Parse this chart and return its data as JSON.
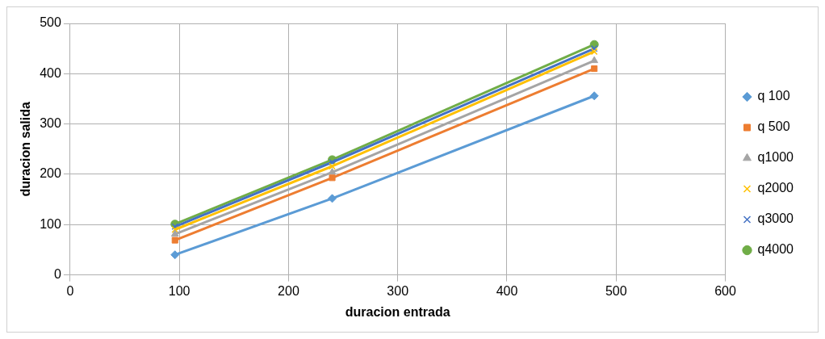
{
  "chart_data": {
    "type": "line",
    "xlabel": "duracion entrada",
    "ylabel": "duracion salida",
    "x": [
      96,
      240,
      480
    ],
    "xlim": [
      0,
      600
    ],
    "xticks": [
      0,
      100,
      200,
      300,
      400,
      500,
      600
    ],
    "ylim": [
      0,
      500
    ],
    "yticks": [
      0,
      100,
      200,
      300,
      400,
      500
    ],
    "grid": true,
    "legend": "right",
    "line_style": "solid",
    "series": [
      {
        "name": "q 100",
        "color": "#5b9bd5",
        "marker": "diamond",
        "values": [
          40,
          152,
          356
        ]
      },
      {
        "name": "q 500",
        "color": "#ed7d31",
        "marker": "square",
        "values": [
          69,
          193,
          410
        ]
      },
      {
        "name": "q1000",
        "color": "#a5a5a5",
        "marker": "triangle",
        "values": [
          81,
          204,
          426
        ]
      },
      {
        "name": "q2000",
        "color": "#ffc000",
        "marker": "cross",
        "values": [
          90,
          216,
          444
        ]
      },
      {
        "name": "q3000",
        "color": "#4472c4",
        "marker": "cross",
        "values": [
          96,
          224,
          450
        ]
      },
      {
        "name": "q4000",
        "color": "#70ad47",
        "marker": "circle",
        "values": [
          101,
          229,
          458
        ]
      }
    ]
  }
}
